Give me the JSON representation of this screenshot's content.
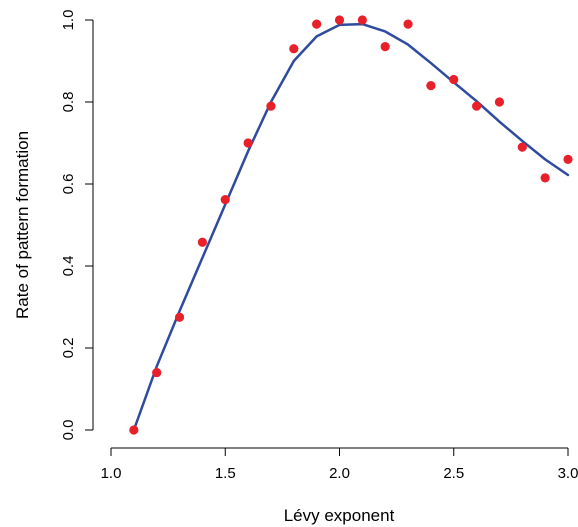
{
  "chart_data": {
    "type": "scatter",
    "xlabel": "Lévy exponent",
    "ylabel": "Rate of pattern formation",
    "xlim": [
      1.0,
      3.0
    ],
    "ylim": [
      0.0,
      1.0
    ],
    "x_ticks": [
      1.0,
      1.5,
      2.0,
      2.5,
      3.0
    ],
    "x_tick_labels": [
      "1.0",
      "1.5",
      "2.0",
      "2.5",
      "3.0"
    ],
    "y_ticks": [
      0.0,
      0.2,
      0.4,
      0.6,
      0.8,
      1.0
    ],
    "y_tick_labels": [
      "0.0",
      "0.2",
      "0.4",
      "0.6",
      "0.8",
      "1.0"
    ],
    "grid": false,
    "series": [
      {
        "kind": "points",
        "color": "#e8202a",
        "x": [
          1.1,
          1.2,
          1.3,
          1.4,
          1.5,
          1.6,
          1.7,
          1.8,
          1.9,
          2.0,
          2.1,
          2.2,
          2.3,
          2.4,
          2.5,
          2.6,
          2.7,
          2.8,
          2.9,
          3.0
        ],
        "y": [
          0.0,
          0.14,
          0.275,
          0.458,
          0.562,
          0.7,
          0.79,
          0.93,
          0.99,
          1.0,
          1.0,
          0.935,
          0.99,
          0.84,
          0.855,
          0.79,
          0.8,
          0.69,
          0.615,
          0.66
        ]
      },
      {
        "kind": "line",
        "color": "#2e4b9e",
        "x": [
          1.1,
          1.2,
          1.3,
          1.4,
          1.5,
          1.6,
          1.7,
          1.8,
          1.9,
          2.0,
          2.1,
          2.2,
          2.3,
          2.4,
          2.5,
          2.6,
          2.7,
          2.8,
          2.9,
          3.0
        ],
        "y": [
          0.0,
          0.155,
          0.29,
          0.42,
          0.55,
          0.68,
          0.8,
          0.9,
          0.96,
          0.988,
          0.99,
          0.972,
          0.94,
          0.895,
          0.848,
          0.802,
          0.752,
          0.705,
          0.66,
          0.622
        ]
      }
    ]
  }
}
